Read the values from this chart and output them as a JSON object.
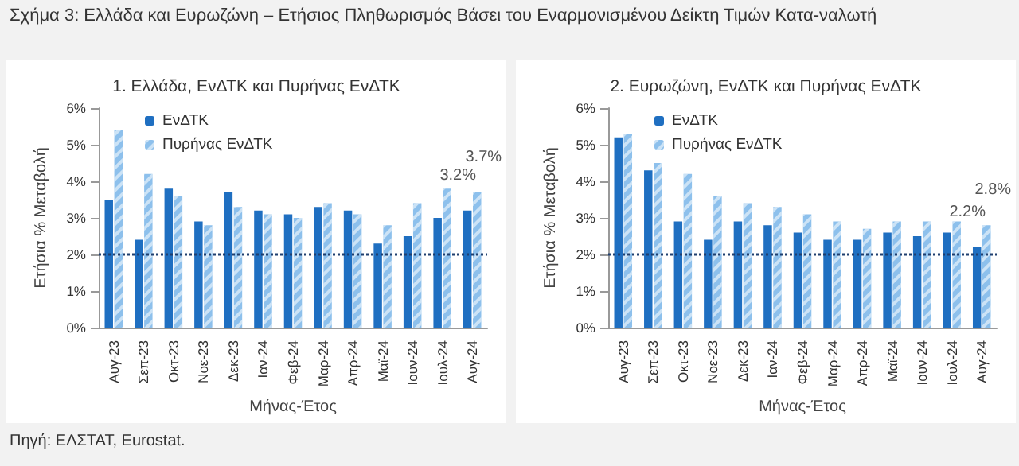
{
  "chart_data": [
    {
      "type": "bar",
      "title": "1. Ελλάδα, ΕνΔΤΚ και Πυρήνας ΕνΔΤΚ",
      "xlabel": "Μήνας-Έτος",
      "ylabel": "Ετήσια % Μεταβολή",
      "annotations": [
        "Σχήμα 3: Ελλάδα και Ευρωζώνη – Ετήσιος Πληθωρισμός Βάσει του Εναρμονισμένου Δείκτη Τιμών Κατα-ναλωτή"
      ],
      "categories": [
        "Αυγ-23",
        "Σεπ-23",
        "Οκτ-23",
        "Νοε-23",
        "Δεκ-23",
        "Ιαν-24",
        "Φεβ-24",
        "Μαρ-24",
        "Απρ-24",
        "Μαϊ-24",
        "Ιουν-24",
        "Ιουλ-24",
        "Αυγ-24"
      ],
      "series": [
        {
          "name": "ΕνΔΤΚ",
          "color": "#1f6fc1",
          "values": [
            3.5,
            2.4,
            3.8,
            2.9,
            3.7,
            3.2,
            3.1,
            3.3,
            3.2,
            2.3,
            2.5,
            3.0,
            3.2
          ],
          "value_labels": [
            null,
            null,
            null,
            null,
            null,
            null,
            null,
            null,
            null,
            null,
            null,
            null,
            "3.2%"
          ]
        },
        {
          "name": "Πυρήνας ΕνΔΤΚ",
          "color": "#8dc0ec",
          "values": [
            5.4,
            4.2,
            3.6,
            2.8,
            3.3,
            3.1,
            3.0,
            3.4,
            3.1,
            2.8,
            3.4,
            3.8,
            3.7
          ],
          "value_labels": [
            null,
            null,
            null,
            null,
            null,
            null,
            null,
            null,
            null,
            null,
            null,
            null,
            "3.7%"
          ]
        }
      ],
      "ylim": [
        0,
        6
      ],
      "yticks": [
        {
          "value": 0,
          "label": "0%"
        },
        {
          "value": 1,
          "label": "1%"
        },
        {
          "value": 2,
          "label": "2%"
        },
        {
          "value": 3,
          "label": "3%"
        },
        {
          "value": 4,
          "label": "4%"
        },
        {
          "value": 5,
          "label": "5%"
        },
        {
          "value": 6,
          "label": "6%"
        }
      ],
      "ref_lines": [
        {
          "axis": "y",
          "value": 2,
          "color": "#1f3f6f",
          "line_style": "dotted"
        }
      ],
      "grid": false,
      "legend": "top left"
    },
    {
      "type": "bar",
      "title": "2. Ευρωζώνη, ΕνΔΤΚ και Πυρήνας ΕνΔΤΚ",
      "xlabel": "Μήνας-Έτος",
      "ylabel": "Ετήσια % Μεταβολή",
      "annotations": [
        "Πηγή: ΕΛΣΤΑΤ, Eurostat."
      ],
      "categories": [
        "Αυγ-23",
        "Σεπ-23",
        "Οκτ-23",
        "Νοε-23",
        "Δεκ-23",
        "Ιαν-24",
        "Φεβ-24",
        "Μαρ-24",
        "Απρ-24",
        "Μαϊ-24",
        "Ιουν-24",
        "Ιουλ-24",
        "Αυγ-24"
      ],
      "series": [
        {
          "name": "ΕνΔΤΚ",
          "color": "#1f6fc1",
          "values": [
            5.2,
            4.3,
            2.9,
            2.4,
            2.9,
            2.8,
            2.6,
            2.4,
            2.4,
            2.6,
            2.5,
            2.6,
            2.2
          ],
          "value_labels": [
            null,
            null,
            null,
            null,
            null,
            null,
            null,
            null,
            null,
            null,
            null,
            null,
            "2.2%"
          ]
        },
        {
          "name": "Πυρήνας ΕνΔΤΚ",
          "color": "#8dc0ec",
          "values": [
            5.3,
            4.5,
            4.2,
            3.6,
            3.4,
            3.3,
            3.1,
            2.9,
            2.7,
            2.9,
            2.9,
            2.9,
            2.8
          ],
          "value_labels": [
            null,
            null,
            null,
            null,
            null,
            null,
            null,
            null,
            null,
            null,
            null,
            null,
            "2.8%"
          ]
        }
      ],
      "ylim": [
        0,
        6
      ],
      "yticks": [
        {
          "value": 0,
          "label": "0%"
        },
        {
          "value": 1,
          "label": "1%"
        },
        {
          "value": 2,
          "label": "2%"
        },
        {
          "value": 3,
          "label": "3%"
        },
        {
          "value": 4,
          "label": "4%"
        },
        {
          "value": 5,
          "label": "5%"
        },
        {
          "value": 6,
          "label": "6%"
        }
      ],
      "ref_lines": [
        {
          "axis": "y",
          "value": 2,
          "color": "#1f3f6f",
          "line_style": "dotted"
        }
      ],
      "grid": false,
      "legend": "top left"
    }
  ]
}
